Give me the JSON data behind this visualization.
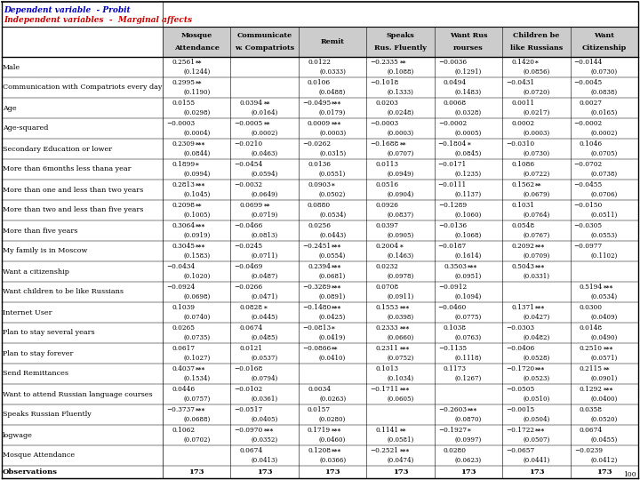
{
  "title1": "Dependent variable  - Probit",
  "title2": "Independent variables  -  Marginal affects",
  "col_headers": [
    "Mosque\nAttendance",
    "Communicate\nw. Compatriots",
    "Remit",
    "Speaks\nRus. Fluently",
    "Want Rus\nrourses",
    "Children be\nlike Russians",
    "Want\nCitizenship"
  ],
  "rows": [
    {
      "label": "Male",
      "data": [
        [
          "0.2561",
          "**"
        ],
        [
          "",
          ""
        ],
        [
          "0.0122",
          ""
        ],
        [
          "−0.2335",
          "**"
        ],
        [
          "−0.0036",
          ""
        ],
        [
          "0.1420",
          "*"
        ],
        [
          "−0.0144",
          ""
        ]
      ],
      "se": [
        [
          "(0.1244)",
          ""
        ],
        [
          "",
          ""
        ],
        [
          "(0.0333)",
          ""
        ],
        [
          "(0.1088)",
          ""
        ],
        [
          "(0.1291)",
          ""
        ],
        [
          "(0.0856)",
          ""
        ],
        [
          "(0.0730)",
          ""
        ]
      ]
    },
    {
      "label": "Communication with Compatriots every day",
      "data": [
        [
          "0.2995",
          "**"
        ],
        [
          "",
          ""
        ],
        [
          "0.0106",
          ""
        ],
        [
          "−0.1018",
          ""
        ],
        [
          "0.0494",
          ""
        ],
        [
          "−0.0431",
          ""
        ],
        [
          "−0.0045",
          ""
        ]
      ],
      "se": [
        [
          "(0.1190)",
          ""
        ],
        [
          "",
          ""
        ],
        [
          "(0.0488)",
          ""
        ],
        [
          "(0.1333)",
          ""
        ],
        [
          "(0.1483)",
          ""
        ],
        [
          "(0.0720)",
          ""
        ],
        [
          "(0.0838)",
          ""
        ]
      ]
    },
    {
      "label": "Age",
      "data": [
        [
          "0.0155",
          ""
        ],
        [
          "0.0394",
          "**"
        ],
        [
          "−0.0495",
          "***"
        ],
        [
          "0.0203",
          ""
        ],
        [
          "0.0068",
          ""
        ],
        [
          "0.0011",
          ""
        ],
        [
          "0.0027",
          ""
        ]
      ],
      "se": [
        [
          "(0.0298)",
          ""
        ],
        [
          "(0.0164)",
          ""
        ],
        [
          "(0.0179)",
          ""
        ],
        [
          "(0.0248)",
          ""
        ],
        [
          "(0.0328)",
          ""
        ],
        [
          "(0.0217)",
          ""
        ],
        [
          "(0.0165)",
          ""
        ]
      ]
    },
    {
      "label": "Age-squared",
      "data": [
        [
          "−0.0003",
          ""
        ],
        [
          "−0.0005",
          "**"
        ],
        [
          "0.0009",
          "***"
        ],
        [
          "−0.0003",
          ""
        ],
        [
          "−0.0002",
          ""
        ],
        [
          "0.0002",
          ""
        ],
        [
          "−0.0002",
          ""
        ]
      ],
      "se": [
        [
          "(0.0004)",
          ""
        ],
        [
          "(0.0002)",
          ""
        ],
        [
          "(0.0003)",
          ""
        ],
        [
          "(0.0003)",
          ""
        ],
        [
          "(0.0005)",
          ""
        ],
        [
          "(0.0003)",
          ""
        ],
        [
          "(0.0002)",
          ""
        ]
      ]
    },
    {
      "label": "Secondary Education or lower",
      "data": [
        [
          "0.2309",
          "***"
        ],
        [
          "−0.0210",
          ""
        ],
        [
          "−0.0262",
          ""
        ],
        [
          "−0.1688",
          "**"
        ],
        [
          "−0.1804",
          "*"
        ],
        [
          "−0.0310",
          ""
        ],
        [
          "0.1046",
          ""
        ]
      ],
      "se": [
        [
          "(0.0844)",
          ""
        ],
        [
          "(0.0463)",
          ""
        ],
        [
          "(0.0315)",
          ""
        ],
        [
          "(0.0707)",
          ""
        ],
        [
          "(0.0845)",
          ""
        ],
        [
          "(0.0730)",
          ""
        ],
        [
          "(0.0705)",
          ""
        ]
      ]
    },
    {
      "label": "More than 6months less thana year",
      "data": [
        [
          "0.1899",
          "*"
        ],
        [
          "−0.0454",
          ""
        ],
        [
          "0.0136",
          ""
        ],
        [
          "0.0113",
          ""
        ],
        [
          "−0.0171",
          ""
        ],
        [
          "0.1086",
          ""
        ],
        [
          "−0.0702",
          ""
        ]
      ],
      "se": [
        [
          "(0.0994)",
          ""
        ],
        [
          "(0.0594)",
          ""
        ],
        [
          "(0.0551)",
          ""
        ],
        [
          "(0.0949)",
          ""
        ],
        [
          "(0.1235)",
          ""
        ],
        [
          "(0.0722)",
          ""
        ],
        [
          "(0.0738)",
          ""
        ]
      ]
    },
    {
      "label": "More than one and less than two years",
      "data": [
        [
          "0.2813",
          "***"
        ],
        [
          "−0.0032",
          ""
        ],
        [
          "0.0903",
          "*"
        ],
        [
          "0.0516",
          ""
        ],
        [
          "−0.0111",
          ""
        ],
        [
          "0.1562",
          "**"
        ],
        [
          "−0.0455",
          ""
        ]
      ],
      "se": [
        [
          "(0.1045)",
          ""
        ],
        [
          "(0.0649)",
          ""
        ],
        [
          "(0.0502)",
          ""
        ],
        [
          "(0.0904)",
          ""
        ],
        [
          "(0.1137)",
          ""
        ],
        [
          "(0.0679)",
          ""
        ],
        [
          "(0.0706)",
          ""
        ]
      ]
    },
    {
      "label": "More than two and less than five years",
      "data": [
        [
          "0.2098",
          "**"
        ],
        [
          "0.0699",
          "**"
        ],
        [
          "0.0880",
          ""
        ],
        [
          "0.0926",
          ""
        ],
        [
          "−0.1289",
          ""
        ],
        [
          "0.1031",
          ""
        ],
        [
          "−0.0150",
          ""
        ]
      ],
      "se": [
        [
          "(0.1005)",
          ""
        ],
        [
          "(0.0719)",
          ""
        ],
        [
          "(0.0534)",
          ""
        ],
        [
          "(0.0837)",
          ""
        ],
        [
          "(0.1060)",
          ""
        ],
        [
          "(0.0764)",
          ""
        ],
        [
          "(0.0511)",
          ""
        ]
      ]
    },
    {
      "label": "More than five years",
      "data": [
        [
          "0.3064",
          "***"
        ],
        [
          "−0.0466",
          ""
        ],
        [
          "0.0256",
          ""
        ],
        [
          "0.0397",
          ""
        ],
        [
          "−0.0136",
          ""
        ],
        [
          "0.0548",
          ""
        ],
        [
          "−0.0305",
          ""
        ]
      ],
      "se": [
        [
          "(0.0919)",
          ""
        ],
        [
          "(0.0813)",
          ""
        ],
        [
          "(0.0443)",
          ""
        ],
        [
          "(0.0905)",
          ""
        ],
        [
          "(0.1068)",
          ""
        ],
        [
          "(0.0767)",
          ""
        ],
        [
          "(0.0553)",
          ""
        ]
      ]
    },
    {
      "label": "My family is in Moscow",
      "data": [
        [
          "0.3045",
          "***"
        ],
        [
          "−0.0245",
          ""
        ],
        [
          "−0.2451",
          "***"
        ],
        [
          "0.2004",
          "*"
        ],
        [
          "−0.0187",
          ""
        ],
        [
          "0.2092",
          "***"
        ],
        [
          "−0.0977",
          ""
        ]
      ],
      "se": [
        [
          "(0.1583)",
          ""
        ],
        [
          "(0.0711)",
          ""
        ],
        [
          "(0.0554)",
          ""
        ],
        [
          "(0.1463)",
          ""
        ],
        [
          "(0.1614)",
          ""
        ],
        [
          "(0.0709)",
          ""
        ],
        [
          "(0.1102)",
          ""
        ]
      ]
    },
    {
      "label": "Want a citizenship",
      "data": [
        [
          "−0.0434",
          ""
        ],
        [
          "−0.0469",
          ""
        ],
        [
          "0.2394",
          "***"
        ],
        [
          "0.0232",
          ""
        ],
        [
          "0.3503",
          "***"
        ],
        [
          "0.5043",
          "***"
        ],
        [
          "",
          ""
        ]
      ],
      "se": [
        [
          "(0.1020)",
          ""
        ],
        [
          "(0.0487)",
          ""
        ],
        [
          "(0.0681)",
          ""
        ],
        [
          "(0.0978)",
          ""
        ],
        [
          "(0.0951)",
          ""
        ],
        [
          "(0.0331)",
          ""
        ],
        [
          "",
          ""
        ]
      ]
    },
    {
      "label": "Want children to be like Russians",
      "data": [
        [
          "−0.0924",
          ""
        ],
        [
          "−0.0266",
          ""
        ],
        [
          "−0.3289",
          "***"
        ],
        [
          "0.0708",
          ""
        ],
        [
          "−0.0912",
          ""
        ],
        [
          "",
          ""
        ],
        [
          "0.5194",
          "***"
        ]
      ],
      "se": [
        [
          "(0.0698)",
          ""
        ],
        [
          "(0.0471)",
          ""
        ],
        [
          "(0.0891)",
          ""
        ],
        [
          "(0.0911)",
          ""
        ],
        [
          "(0.1094)",
          ""
        ],
        [
          "",
          ""
        ],
        [
          "(0.0534)",
          ""
        ]
      ]
    },
    {
      "label": "Internet User",
      "data": [
        [
          "0.1039",
          ""
        ],
        [
          "0.0828",
          "*"
        ],
        [
          "−0.1480",
          "***"
        ],
        [
          "0.1553",
          "***"
        ],
        [
          "−0.0460",
          ""
        ],
        [
          "0.1371",
          "***"
        ],
        [
          "0.0300",
          ""
        ]
      ],
      "se": [
        [
          "(0.0740)",
          ""
        ],
        [
          "(0.0445)",
          ""
        ],
        [
          "(0.0425)",
          ""
        ],
        [
          "(0.0398)",
          ""
        ],
        [
          "(0.0775)",
          ""
        ],
        [
          "(0.0427)",
          ""
        ],
        [
          "(0.0409)",
          ""
        ]
      ]
    },
    {
      "label": "Plan to stay several years",
      "data": [
        [
          "0.0265",
          ""
        ],
        [
          "0.0674",
          ""
        ],
        [
          "−0.0813",
          "*"
        ],
        [
          "0.2333",
          "***"
        ],
        [
          "0.1038",
          ""
        ],
        [
          "−0.0303",
          ""
        ],
        [
          "0.0148",
          ""
        ]
      ],
      "se": [
        [
          "(0.0735)",
          ""
        ],
        [
          "(0.0485)",
          ""
        ],
        [
          "(0.0419)",
          ""
        ],
        [
          "(0.0660)",
          ""
        ],
        [
          "(0.0763)",
          ""
        ],
        [
          "(0.0482)",
          ""
        ],
        [
          "(0.0490)",
          ""
        ]
      ]
    },
    {
      "label": "Plan to stay forever",
      "data": [
        [
          "0.0617",
          ""
        ],
        [
          "0.0121",
          ""
        ],
        [
          "−0.0866",
          "**"
        ],
        [
          "0.2311",
          "***"
        ],
        [
          "−0.1135",
          ""
        ],
        [
          "−0.0406",
          ""
        ],
        [
          "0.2510",
          "***"
        ]
      ],
      "se": [
        [
          "(0.1027)",
          ""
        ],
        [
          "(0.0537)",
          ""
        ],
        [
          "(0.0410)",
          ""
        ],
        [
          "(0.0752)",
          ""
        ],
        [
          "(0.1118)",
          ""
        ],
        [
          "(0.0528)",
          ""
        ],
        [
          "(0.0571)",
          ""
        ]
      ]
    },
    {
      "label": "Send Remittances",
      "data": [
        [
          "0.4037",
          "***"
        ],
        [
          "−0.0168",
          ""
        ],
        [
          "",
          ""
        ],
        [
          "0.1013",
          ""
        ],
        [
          "0.1173",
          ""
        ],
        [
          "−0.1720",
          "***"
        ],
        [
          "0.2115",
          "**"
        ]
      ],
      "se": [
        [
          "(0.1534)",
          ""
        ],
        [
          "(0.0794)",
          ""
        ],
        [
          "",
          ""
        ],
        [
          "(0.1034)",
          ""
        ],
        [
          "(0.1267)",
          ""
        ],
        [
          "(0.0523)",
          ""
        ],
        [
          "(0.0901)",
          ""
        ]
      ]
    },
    {
      "label": "Want to attend Russian language courses",
      "data": [
        [
          "0.0446",
          ""
        ],
        [
          "−0.0102",
          ""
        ],
        [
          "0.0034",
          ""
        ],
        [
          "−0.1711",
          "***"
        ],
        [
          "",
          ""
        ],
        [
          "−0.0505",
          ""
        ],
        [
          "0.1292",
          "***"
        ]
      ],
      "se": [
        [
          "(0.0757)",
          ""
        ],
        [
          "(0.0361)",
          ""
        ],
        [
          "(0.0263)",
          ""
        ],
        [
          "(0.0605)",
          ""
        ],
        [
          "",
          ""
        ],
        [
          "(0.0510)",
          ""
        ],
        [
          "(0.0400)",
          ""
        ]
      ]
    },
    {
      "label": "Speaks Russian Fluently",
      "data": [
        [
          "−0.3737",
          "***"
        ],
        [
          "−0.0517",
          ""
        ],
        [
          "0.0157",
          ""
        ],
        [
          "",
          ""
        ],
        [
          "−0.2603",
          "***"
        ],
        [
          "−0.0015",
          ""
        ],
        [
          "0.0358",
          ""
        ]
      ],
      "se": [
        [
          "(0.0688)",
          ""
        ],
        [
          "(0.0405)",
          ""
        ],
        [
          "(0.0280)",
          ""
        ],
        [
          "",
          ""
        ],
        [
          "(0.0870)",
          ""
        ],
        [
          "(0.0504)",
          ""
        ],
        [
          "(0.0520)",
          ""
        ]
      ]
    },
    {
      "label": "logwage",
      "data": [
        [
          "0.1062",
          ""
        ],
        [
          "−0.0970",
          "***"
        ],
        [
          "0.1719",
          "***"
        ],
        [
          "0.1141",
          "**"
        ],
        [
          "−0.1927",
          "*"
        ],
        [
          "−0.1722",
          "***"
        ],
        [
          "0.0674",
          ""
        ]
      ],
      "se": [
        [
          "(0.0702)",
          ""
        ],
        [
          "(0.0352)",
          ""
        ],
        [
          "(0.0460)",
          ""
        ],
        [
          "(0.0581)",
          ""
        ],
        [
          "(0.0997)",
          ""
        ],
        [
          "(0.0507)",
          ""
        ],
        [
          "(0.0455)",
          ""
        ]
      ]
    },
    {
      "label": "Mosque Attendance",
      "data": [
        [
          "",
          ""
        ],
        [
          "0.0674",
          ""
        ],
        [
          "0.1208",
          "***"
        ],
        [
          "−0.2521",
          "***"
        ],
        [
          "0.0280",
          ""
        ],
        [
          "−0.0657",
          ""
        ],
        [
          "−0.0239",
          ""
        ]
      ],
      "se": [
        [
          "",
          ""
        ],
        [
          "(0.0413)",
          ""
        ],
        [
          "(0.0366)",
          ""
        ],
        [
          "(0.0474)",
          ""
        ],
        [
          "(0.0623)",
          ""
        ],
        [
          "(0.0441)",
          ""
        ],
        [
          "(0.0412)",
          ""
        ]
      ]
    },
    {
      "label": "Observations",
      "is_obs": true,
      "data": [
        [
          "173",
          ""
        ],
        [
          "173",
          ""
        ],
        [
          "173",
          ""
        ],
        [
          "173",
          ""
        ],
        [
          "173",
          ""
        ],
        [
          "173",
          ""
        ],
        [
          "173",
          ""
        ]
      ],
      "se": [
        [
          "",
          ""
        ],
        [
          "",
          ""
        ],
        [
          "",
          ""
        ],
        [
          "",
          ""
        ],
        [
          "",
          ""
        ],
        [
          "",
          ""
        ],
        [
          "",
          ""
        ]
      ]
    }
  ],
  "note": "100",
  "title1_color": "#0000BB",
  "title2_color": "#CC0000"
}
